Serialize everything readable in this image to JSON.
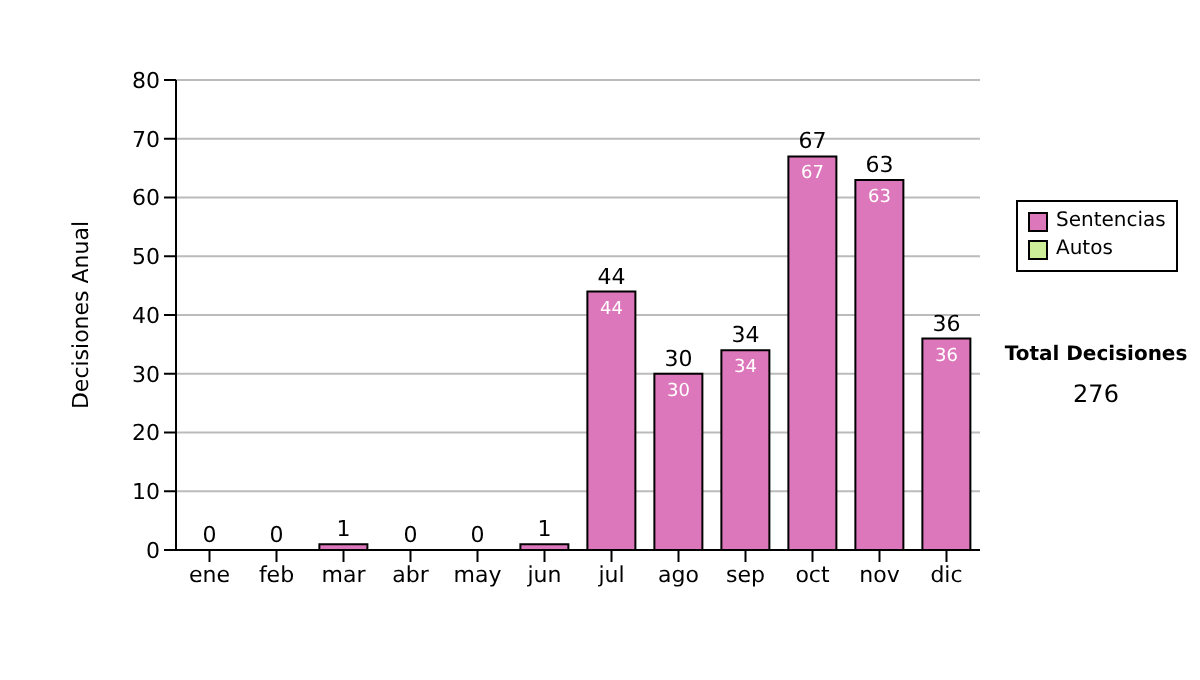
{
  "chart_data": {
    "type": "bar",
    "ylabel": "Decisiones Anual",
    "stacked": true,
    "categories": [
      "ene",
      "feb",
      "mar",
      "abr",
      "may",
      "jun",
      "jul",
      "ago",
      "sep",
      "oct",
      "nov",
      "dic"
    ],
    "series": [
      {
        "name": "Sentencias",
        "color": "#dd77bb",
        "values": [
          0,
          0,
          1,
          0,
          0,
          1,
          44,
          30,
          34,
          67,
          63,
          36
        ],
        "value_labels": [
          null,
          null,
          null,
          null,
          null,
          null,
          "44",
          "30",
          "34",
          "67",
          "63",
          "36"
        ]
      },
      {
        "name": "Autos",
        "color": "#ccee99",
        "values": [
          0,
          0,
          0,
          0,
          0,
          0,
          0,
          0,
          0,
          0,
          0,
          0
        ]
      }
    ],
    "totals": [
      "0",
      "0",
      "1",
      "0",
      "0",
      "1",
      "44",
      "30",
      "34",
      "67",
      "63",
      "36"
    ],
    "ylim": [
      0,
      80
    ],
    "yticks": [
      0,
      10,
      20,
      30,
      40,
      50,
      60,
      70,
      80
    ],
    "grid": "y",
    "legend": "right",
    "annotations": [
      "Total Decisiones",
      "276"
    ]
  }
}
